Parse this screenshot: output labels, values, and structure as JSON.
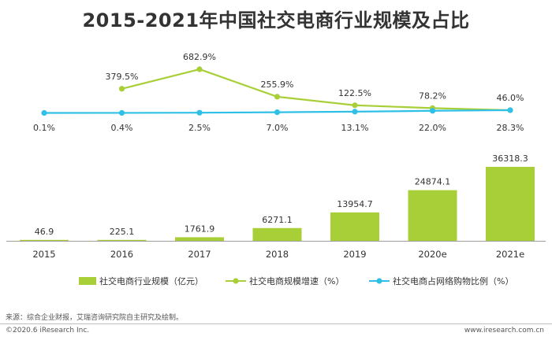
{
  "title": "2015-2021年中国社交电商行业规模及占比",
  "colors": {
    "bar": "#a9cf38",
    "growth": "#a9cf38",
    "share": "#2fc0e8",
    "baseline": "#9e9e9e",
    "text": "#333333"
  },
  "chart_data": {
    "type": "bar",
    "categories": [
      "2015",
      "2016",
      "2017",
      "2018",
      "2019",
      "2020e",
      "2021e"
    ],
    "series": [
      {
        "name": "社交电商行业规模（亿元）",
        "type": "bar",
        "values": [
          46.9,
          225.1,
          1761.9,
          6271.1,
          13954.7,
          24874.1,
          36318.3
        ],
        "labels": [
          "46.9",
          "225.1",
          "1761.9",
          "6271.1",
          "13954.7",
          "24874.1",
          "36318.3"
        ]
      },
      {
        "name": "社交电商规模增速（%）",
        "type": "line",
        "values": [
          null,
          379.5,
          682.9,
          255.9,
          122.5,
          78.2,
          46.0
        ],
        "labels": [
          "",
          "379.5%",
          "682.9%",
          "255.9%",
          "122.5%",
          "78.2%",
          "46.0%"
        ]
      },
      {
        "name": "社交电商占网络购物比例（%）",
        "type": "line",
        "values": [
          0.1,
          0.4,
          2.5,
          7.0,
          13.1,
          22.0,
          28.3
        ],
        "labels": [
          "0.1%",
          "0.4%",
          "2.5%",
          "7.0%",
          "13.1%",
          "22.0%",
          "28.3%"
        ]
      }
    ],
    "legend_position": "bottom"
  },
  "footer": {
    "source": "来源：综合企业财报，艾瑞咨询研究院自主研究及绘制。",
    "copyright": "©2020.6 iResearch Inc.",
    "url": "www.iresearch.com.cn"
  }
}
